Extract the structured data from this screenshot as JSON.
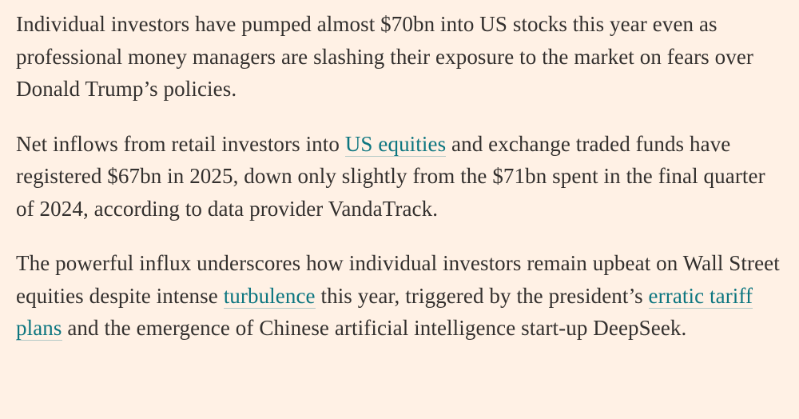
{
  "article": {
    "paragraphs": [
      {
        "segments": [
          {
            "text": "Individual investors have pumped almost $70bn into US stocks this year even as professional money managers are slashing their exposure to the market on fears over Donald Trump’s policies."
          }
        ]
      },
      {
        "segments": [
          {
            "text": "Net inflows from retail investors into "
          },
          {
            "text": "US equities",
            "link": true
          },
          {
            "text": " and exchange traded funds have registered $67bn in 2025, down only slightly from the $71bn spent in the final quarter of 2024, according to data provider VandaTrack."
          }
        ]
      },
      {
        "segments": [
          {
            "text": "The powerful influx underscores how individual investors remain upbeat on Wall Street equities despite intense "
          },
          {
            "text": "turbulence",
            "link": true
          },
          {
            "text": " this year, triggered by the president’s "
          },
          {
            "text": "erratic tariff plans",
            "link": true
          },
          {
            "text": " and the emergence of Chinese artificial intelligence start-up DeepSeek."
          }
        ]
      }
    ]
  },
  "colors": {
    "background": "#fff1e5",
    "text": "#33302e",
    "link": "#0d7680"
  }
}
